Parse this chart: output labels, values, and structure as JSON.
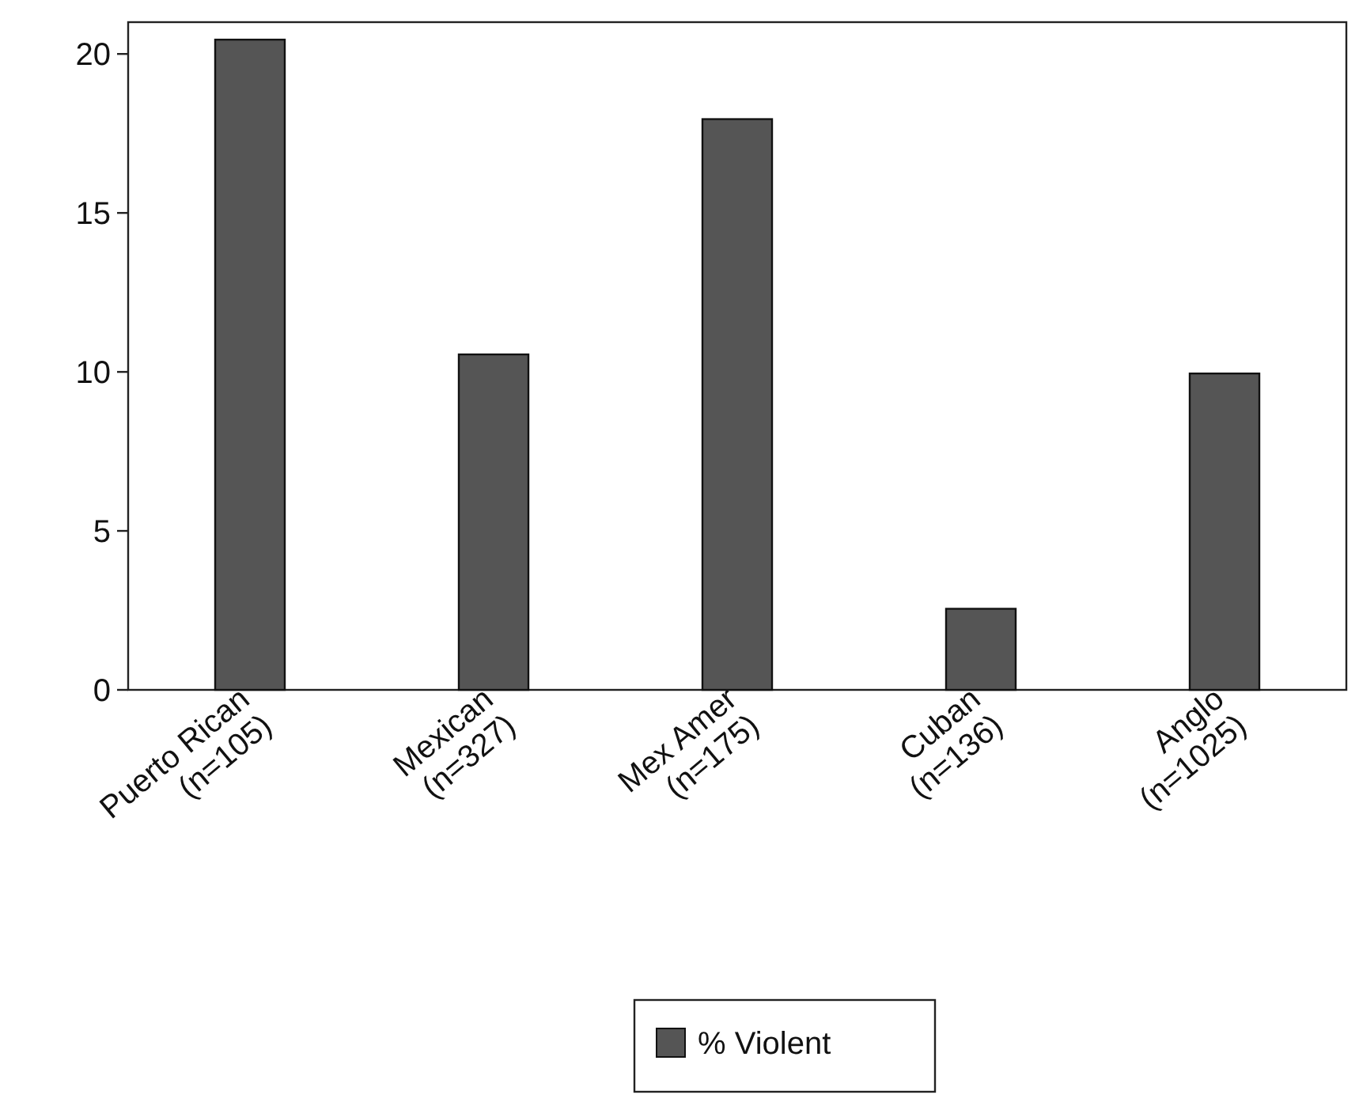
{
  "chart_data": {
    "type": "bar",
    "categories": [
      "Puerto Rican\n(n=105)",
      "Mexican\n(n=327)",
      "Mex Amer\n(n=175)",
      "Cuban\n(n=136)",
      "Anglo\n(n=1025)"
    ],
    "series": [
      {
        "name": "% Violent",
        "color": "#555555",
        "values": [
          20.45,
          10.55,
          17.95,
          2.55,
          9.95
        ]
      }
    ],
    "ylim": [
      0,
      21
    ],
    "yticks": [
      0,
      5,
      10,
      15,
      20
    ],
    "grid": false,
    "legend": "bottom"
  }
}
